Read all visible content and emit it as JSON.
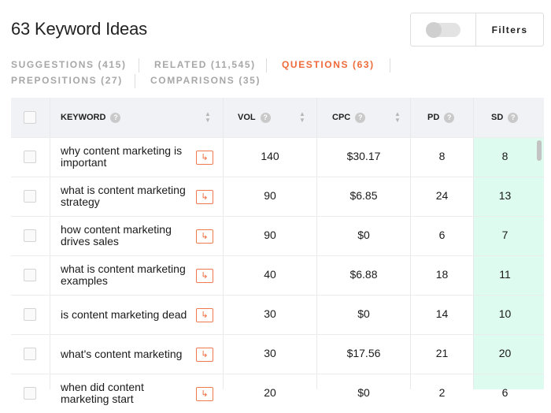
{
  "header": {
    "title": "63 Keyword Ideas",
    "filters_label": "Filters"
  },
  "tabs": [
    {
      "label": "SUGGESTIONS (415)",
      "active": false
    },
    {
      "label": "RELATED (11,545)",
      "active": false
    },
    {
      "label": "QUESTIONS (63)",
      "active": true
    },
    {
      "label": "PREPOSITIONS (27)",
      "active": false
    },
    {
      "label": "COMPARISONS (35)",
      "active": false
    }
  ],
  "table": {
    "columns": [
      "KEYWORD",
      "VOL",
      "CPC",
      "PD",
      "SD"
    ],
    "help_glyph": "?",
    "go_glyph": "↳",
    "rows": [
      {
        "keyword": "why content marketing is important",
        "vol": "140",
        "cpc": "$30.17",
        "pd": "8",
        "sd": "8"
      },
      {
        "keyword": "what is content marketing strategy",
        "vol": "90",
        "cpc": "$6.85",
        "pd": "24",
        "sd": "13"
      },
      {
        "keyword": "how content marketing drives sales",
        "vol": "90",
        "cpc": "$0",
        "pd": "6",
        "sd": "7"
      },
      {
        "keyword": "what is content marketing examples",
        "vol": "40",
        "cpc": "$6.88",
        "pd": "18",
        "sd": "11"
      },
      {
        "keyword": "is content marketing dead",
        "vol": "30",
        "cpc": "$0",
        "pd": "14",
        "sd": "10"
      },
      {
        "keyword": "what's content marketing",
        "vol": "30",
        "cpc": "$17.56",
        "pd": "21",
        "sd": "20"
      },
      {
        "keyword": "when did content marketing start",
        "vol": "20",
        "cpc": "$0",
        "pd": "2",
        "sd": "6"
      }
    ]
  },
  "colors": {
    "accent": "#ef6a3a",
    "sd_highlight": "#ddfbee",
    "header_bg": "#f1f2f5"
  }
}
